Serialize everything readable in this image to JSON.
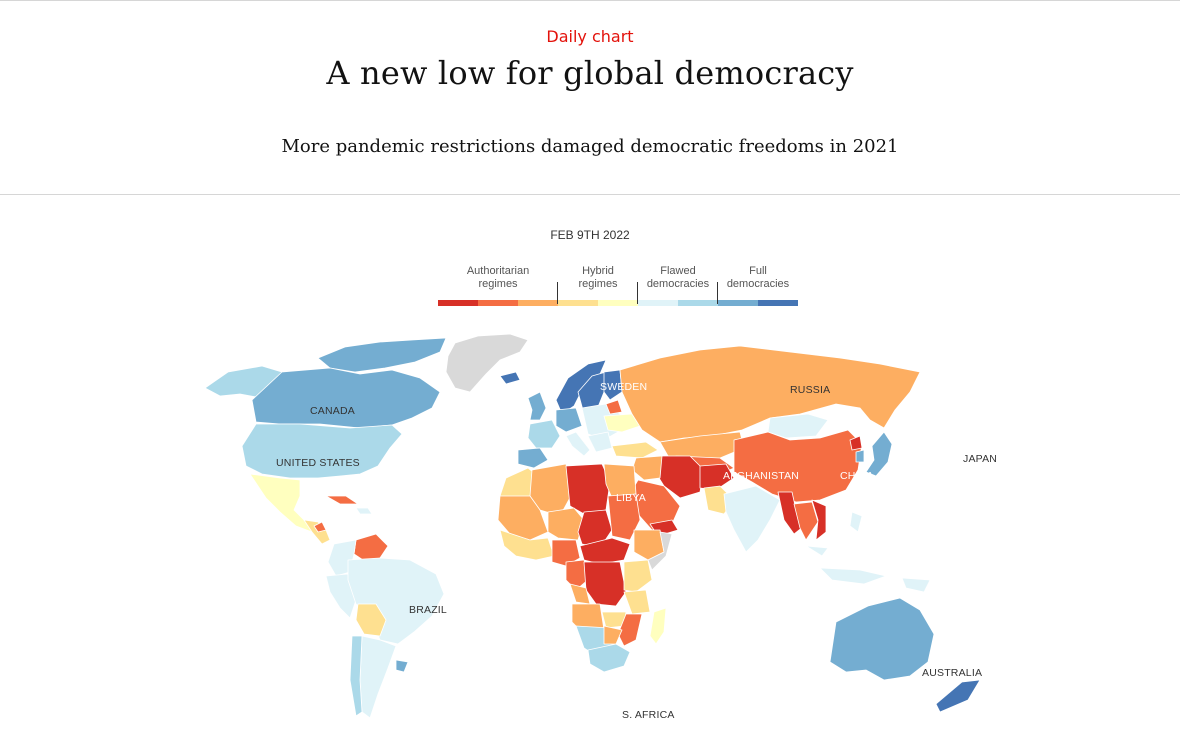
{
  "header": {
    "kicker": "Daily chart",
    "title": "A new low for global democracy",
    "subtitle": "More pandemic restrictions damaged democratic freedoms in 2021"
  },
  "date": "FEB 9TH 2022",
  "legend": {
    "categories": [
      {
        "label": "Authoritarian\nregimes",
        "colors": [
          "#d73027",
          "#f46d43",
          "#fdae61"
        ]
      },
      {
        "label": "Hybrid\nregimes",
        "colors": [
          "#fee090",
          "#ffffbf"
        ]
      },
      {
        "label": "Flawed\ndemocracies",
        "colors": [
          "#e0f3f8",
          "#abd9e9"
        ]
      },
      {
        "label": "Full\ndemocracies",
        "colors": [
          "#74add1",
          "#4575b4"
        ]
      }
    ],
    "no_data_color": "#d9d9d9"
  },
  "map_labels": {
    "canada": "CANADA",
    "united_states": "UNITED STATES",
    "brazil": "BRAZIL",
    "sweden": "SWEDEN",
    "russia": "RUSSIA",
    "libya": "LIBYA",
    "afghanistan": "AFGHANISTAN",
    "china": "CHINA",
    "japan": "JAPAN",
    "australia": "AUSTRALIA",
    "south_africa": "S. AFRICA"
  },
  "regions": [
    {
      "name": "Canada",
      "category": "Full democracies"
    },
    {
      "name": "United States",
      "category": "Flawed democracies"
    },
    {
      "name": "Mexico",
      "category": "Hybrid regimes"
    },
    {
      "name": "Brazil",
      "category": "Flawed democracies"
    },
    {
      "name": "Venezuela",
      "category": "Authoritarian regimes"
    },
    {
      "name": "Sweden",
      "category": "Full democracies"
    },
    {
      "name": "Russia",
      "category": "Authoritarian regimes"
    },
    {
      "name": "China",
      "category": "Authoritarian regimes"
    },
    {
      "name": "Libya",
      "category": "Authoritarian regimes"
    },
    {
      "name": "Afghanistan",
      "category": "Authoritarian regimes"
    },
    {
      "name": "India",
      "category": "Flawed democracies"
    },
    {
      "name": "Australia",
      "category": "Full democracies"
    },
    {
      "name": "South Africa",
      "category": "Flawed democracies"
    },
    {
      "name": "Greenland",
      "category": "No data"
    }
  ]
}
